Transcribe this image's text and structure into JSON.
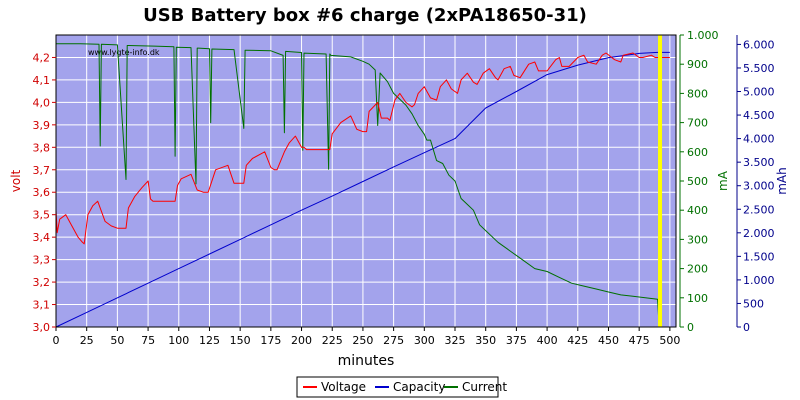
{
  "chart_data": {
    "type": "line",
    "title": "USB Battery box #6 charge (2xPA18650-31)",
    "watermark": "www.lygte-info.dk",
    "xlabel": "minutes",
    "xlim": [
      0,
      505
    ],
    "x_ticks": [
      "0",
      "25",
      "50",
      "75",
      "100",
      "125",
      "150",
      "175",
      "200",
      "225",
      "250",
      "275",
      "300",
      "325",
      "350",
      "375",
      "400",
      "425",
      "450",
      "475",
      "500"
    ],
    "grid": true,
    "background_color": "#a3a3ec",
    "y_axes": {
      "left": {
        "label": "volt",
        "color": "#d00000",
        "lim": [
          3.0,
          4.3
        ],
        "ticks": [
          "3,0",
          "3,1",
          "3,2",
          "3,3",
          "3,4",
          "3,5",
          "3,6",
          "3,7",
          "3,8",
          "3,9",
          "4,0",
          "4,1",
          "4,2"
        ]
      },
      "right1": {
        "label": "mA",
        "color": "#007000",
        "lim": [
          0,
          1000
        ],
        "ticks": [
          "0",
          "100",
          "200",
          "300",
          "400",
          "500",
          "600",
          "700",
          "800",
          "900",
          "1.000"
        ]
      },
      "right2": {
        "label": "mAh",
        "color": "#00008b",
        "lim": [
          0,
          6200
        ],
        "ticks": [
          "0",
          "500",
          "1.000",
          "1.500",
          "2.000",
          "2.500",
          "3.000",
          "3.500",
          "4.000",
          "4.500",
          "5.000",
          "5.500",
          "6.000"
        ]
      }
    },
    "legend_position": "bottom-center",
    "series": [
      {
        "name": "Voltage",
        "axis": "left",
        "color": "#ff0000",
        "x": [
          0,
          1,
          3,
          8,
          12,
          18,
          21,
          23,
          26,
          30,
          34,
          40,
          45,
          50,
          55,
          57,
          59,
          64,
          70,
          75,
          77,
          79,
          85,
          90,
          97,
          99,
          102,
          110,
          115,
          120,
          122,
          124,
          130,
          140,
          145,
          150,
          153,
          155,
          160,
          170,
          175,
          178,
          180,
          186,
          190,
          195,
          200,
          202,
          204,
          212,
          215,
          220,
          223,
          225,
          232,
          240,
          245,
          250,
          253,
          255,
          262,
          265,
          270,
          272,
          276,
          280,
          285,
          290,
          292,
          295,
          300,
          305,
          310,
          313,
          318,
          322,
          327,
          330,
          335,
          340,
          343,
          348,
          353,
          358,
          360,
          365,
          370,
          373,
          378,
          385,
          390,
          393,
          400,
          407,
          410,
          412,
          418,
          425,
          430,
          433,
          440,
          445,
          448,
          455,
          460,
          462,
          470,
          475,
          478,
          485,
          488,
          492,
          500
        ],
        "values": [
          3.52,
          3.42,
          3.48,
          3.5,
          3.46,
          3.4,
          3.38,
          3.37,
          3.5,
          3.54,
          3.56,
          3.47,
          3.45,
          3.44,
          3.44,
          3.44,
          3.53,
          3.58,
          3.62,
          3.65,
          3.57,
          3.56,
          3.56,
          3.56,
          3.56,
          3.63,
          3.66,
          3.68,
          3.61,
          3.6,
          3.6,
          3.6,
          3.7,
          3.72,
          3.64,
          3.64,
          3.64,
          3.72,
          3.75,
          3.78,
          3.71,
          3.7,
          3.7,
          3.78,
          3.82,
          3.85,
          3.8,
          3.8,
          3.79,
          3.79,
          3.79,
          3.79,
          3.79,
          3.86,
          3.91,
          3.94,
          3.88,
          3.87,
          3.87,
          3.96,
          4.0,
          3.93,
          3.93,
          3.92,
          4.01,
          4.04,
          4.0,
          3.98,
          3.99,
          4.04,
          4.07,
          4.02,
          4.01,
          4.07,
          4.1,
          4.06,
          4.04,
          4.1,
          4.13,
          4.09,
          4.08,
          4.13,
          4.15,
          4.11,
          4.1,
          4.15,
          4.16,
          4.12,
          4.11,
          4.17,
          4.18,
          4.14,
          4.14,
          4.19,
          4.2,
          4.16,
          4.16,
          4.2,
          4.21,
          4.18,
          4.17,
          4.21,
          4.22,
          4.19,
          4.18,
          4.21,
          4.22,
          4.2,
          4.2,
          4.21,
          4.2,
          4.2,
          4.2
        ]
      },
      {
        "name": "Capacity",
        "axis": "right2",
        "color": "#0000cd",
        "x": [
          0,
          25,
          50,
          75,
          100,
          125,
          150,
          175,
          200,
          225,
          250,
          275,
          300,
          325,
          350,
          375,
          400,
          425,
          450,
          475,
          490,
          500
        ],
        "values": [
          0,
          310,
          620,
          930,
          1240,
          1550,
          1860,
          2170,
          2480,
          2780,
          3090,
          3400,
          3700,
          4000,
          4650,
          5000,
          5360,
          5560,
          5720,
          5810,
          5830,
          5830
        ]
      },
      {
        "name": "Current",
        "axis": "right1",
        "color": "#007000",
        "x": [
          0,
          10,
          20,
          35,
          36,
          37,
          50,
          57,
          58,
          59,
          80,
          96,
          97,
          98,
          110,
          114,
          115,
          116,
          125,
          126,
          127,
          145,
          153,
          154,
          155,
          175,
          185,
          186,
          187,
          200,
          201,
          202,
          220,
          222,
          223,
          224,
          240,
          250,
          255,
          260,
          262,
          264,
          270,
          275,
          280,
          285,
          290,
          295,
          300,
          302,
          305,
          310,
          315,
          320,
          325,
          330,
          335,
          340,
          345,
          350,
          360,
          370,
          380,
          390,
          400,
          410,
          420,
          430,
          440,
          450,
          460,
          470,
          480,
          490,
          491,
          492
        ],
        "values": [
          970,
          970,
          970,
          968,
          620,
          968,
          966,
          505,
          964,
          964,
          962,
          960,
          585,
          958,
          957,
          490,
          955,
          955,
          953,
          700,
          952,
          950,
          680,
          948,
          948,
          946,
          930,
          665,
          944,
          940,
          605,
          938,
          935,
          540,
          935,
          930,
          925,
          910,
          900,
          880,
          690,
          870,
          840,
          800,
          780,
          760,
          730,
          690,
          660,
          640,
          640,
          570,
          560,
          520,
          500,
          440,
          420,
          400,
          350,
          330,
          290,
          260,
          230,
          200,
          190,
          170,
          150,
          140,
          130,
          120,
          110,
          105,
          100,
          95,
          20,
          0
        ]
      }
    ]
  }
}
